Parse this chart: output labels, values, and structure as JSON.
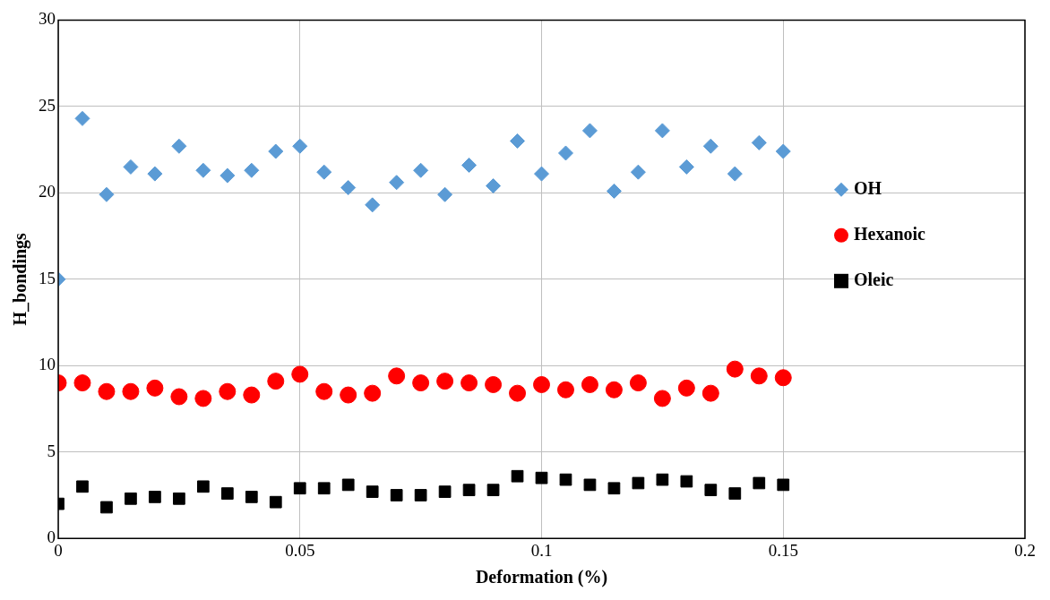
{
  "chart_data": {
    "type": "scatter",
    "xlabel": "Deformation (%)",
    "ylabel": "H_bondings",
    "x": [
      0,
      0.005,
      0.01,
      0.015,
      0.02,
      0.025,
      0.03,
      0.035,
      0.04,
      0.045,
      0.05,
      0.055,
      0.06,
      0.065,
      0.07,
      0.075,
      0.08,
      0.085,
      0.09,
      0.095,
      0.1,
      0.105,
      0.11,
      0.115,
      0.12,
      0.125,
      0.13,
      0.135,
      0.14,
      0.145,
      0.15
    ],
    "series": [
      {
        "name": "OH",
        "color": "#5b9bd5",
        "marker": "diamond",
        "values": [
          15.0,
          24.3,
          19.9,
          21.5,
          21.1,
          22.7,
          21.3,
          21.0,
          21.3,
          22.4,
          22.7,
          21.2,
          20.3,
          19.3,
          20.6,
          21.3,
          19.9,
          21.6,
          20.4,
          23.0,
          21.1,
          22.3,
          23.6,
          20.1,
          21.2,
          23.6,
          21.5,
          22.7,
          21.1,
          22.9,
          22.4
        ]
      },
      {
        "name": "Hexanoic",
        "color": "#ff0000",
        "marker": "circle",
        "values": [
          9.0,
          9.0,
          8.5,
          8.5,
          8.7,
          8.2,
          8.1,
          8.5,
          8.3,
          9.1,
          9.5,
          8.5,
          8.3,
          8.4,
          9.4,
          9.0,
          9.1,
          9.0,
          8.9,
          8.4,
          8.9,
          8.6,
          8.9,
          8.6,
          9.0,
          8.1,
          8.7,
          8.4,
          9.8,
          9.4,
          9.3
        ]
      },
      {
        "name": "Oleic",
        "color": "#000000",
        "marker": "square",
        "values": [
          2.0,
          3.0,
          1.8,
          2.3,
          2.4,
          2.3,
          3.0,
          2.6,
          2.4,
          2.1,
          2.9,
          2.9,
          3.1,
          2.7,
          2.5,
          2.5,
          2.7,
          2.8,
          2.8,
          3.6,
          3.5,
          3.4,
          3.1,
          2.9,
          3.2,
          3.4,
          3.3,
          2.8,
          2.6,
          3.2,
          3.1
        ]
      }
    ],
    "xlim": [
      0,
      0.2
    ],
    "xticks": [
      0,
      0.05,
      0.1,
      0.15,
      0.2
    ],
    "ylim": [
      0,
      30
    ],
    "yticks": [
      0,
      5,
      10,
      15,
      20,
      25,
      30
    ],
    "grid": true,
    "legend": "right"
  }
}
